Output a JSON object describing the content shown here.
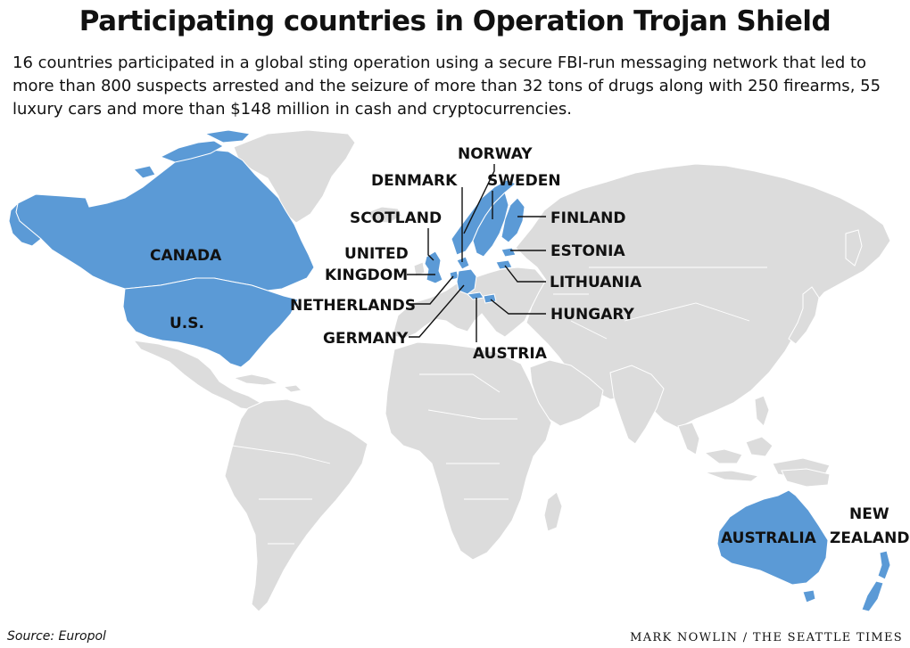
{
  "header": {
    "title": "Participating countries in Operation Trojan Shield",
    "subtitle": "16 countries participated in a global sting operation using a secure FBI-run messaging network that led to more than 800 suspects arrested and the seizure of more than 32 tons of drugs along with 250 firearms, 55 luxury cars and more than $148 million in cash and cryptocurrencies."
  },
  "map": {
    "highlight_color": "#5b9ad6",
    "land_color": "#dcdcdc",
    "participating_countries": [
      "Canada",
      "U.S.",
      "Norway",
      "Denmark",
      "Sweden",
      "Scotland",
      "Finland",
      "United Kingdom",
      "Estonia",
      "Lithuania",
      "Netherlands",
      "Hungary",
      "Germany",
      "Austria",
      "Australia",
      "New Zealand"
    ],
    "labels": {
      "canada": "CANADA",
      "us": "U.S.",
      "norway": "NORWAY",
      "denmark": "DENMARK",
      "sweden": "SWEDEN",
      "scotland": "SCOTLAND",
      "finland": "FINLAND",
      "uk_line1": "UNITED",
      "uk_line2": "KINGDOM",
      "estonia": "ESTONIA",
      "lithuania": "LITHUANIA",
      "netherlands": "NETHERLANDS",
      "hungary": "HUNGARY",
      "germany": "GERMANY",
      "austria": "AUSTRIA",
      "australia": "AUSTRALIA",
      "nz_line1": "NEW",
      "nz_line2": "ZEALAND"
    }
  },
  "footer": {
    "source": "Source: Europol",
    "credit": "MARK NOWLIN / THE SEATTLE TIMES"
  }
}
